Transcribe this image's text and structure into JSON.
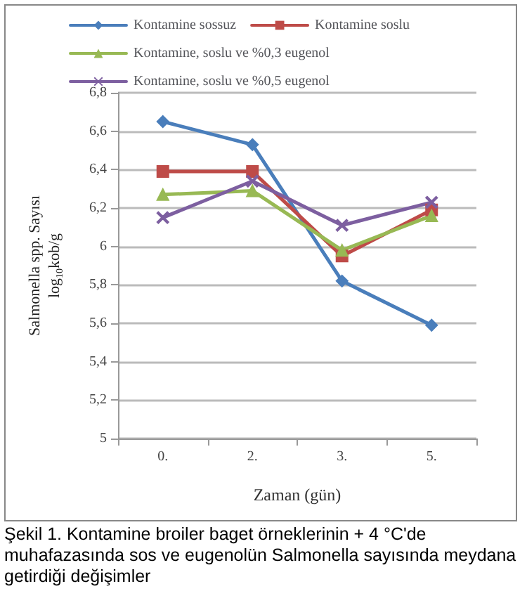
{
  "chart_data": {
    "type": "line",
    "categories": [
      "0.",
      "2.",
      "3.",
      "5."
    ],
    "xlabel": "Zaman (gün)",
    "ylabel": "Salmonella spp. Sayısı\nlog$_{10}$kob/g",
    "ylim": [
      5,
      6.8
    ],
    "yticks": [
      5,
      {
        "value": 5.2,
        "label": "5,2"
      },
      {
        "value": 5.4,
        "label": "5,4"
      },
      {
        "value": 5.6,
        "label": "5,6"
      },
      {
        "value": 5.8,
        "label": "5,8"
      },
      6,
      {
        "value": 6.2,
        "label": "6,2"
      },
      {
        "value": 6.4,
        "label": "6,4"
      },
      {
        "value": 6.6,
        "label": "6,6"
      },
      {
        "value": 6.8,
        "label": "6,8"
      }
    ],
    "grid": "y",
    "legend": "top",
    "series": [
      {
        "name": "Kontamine sossuz",
        "color": "#4a7ebb",
        "marker": "diamond",
        "values": [
          6.65,
          6.53,
          5.82,
          5.59
        ]
      },
      {
        "name": "Kontamine soslu",
        "color": "#be4b48",
        "marker": "square",
        "values": [
          6.39,
          6.39,
          5.95,
          6.19
        ]
      },
      {
        "name": "Kontamine, soslu ve %0,3 eugenol",
        "color": "#98b954",
        "marker": "triangle",
        "values": [
          6.27,
          6.29,
          5.98,
          6.16
        ]
      },
      {
        "name": "Kontamine, soslu ve %0,5 eugenol",
        "color": "#7d5fa0",
        "marker": "cross",
        "values": [
          6.15,
          6.34,
          6.11,
          6.23
        ]
      }
    ],
    "annotations": [
      "Şekil 1. Kontamine broiler baget örneklerinin + 4 °C'de muhafazasında sos ve eugenolün Salmonella sayısında meydana getirdiği değişimler"
    ]
  }
}
